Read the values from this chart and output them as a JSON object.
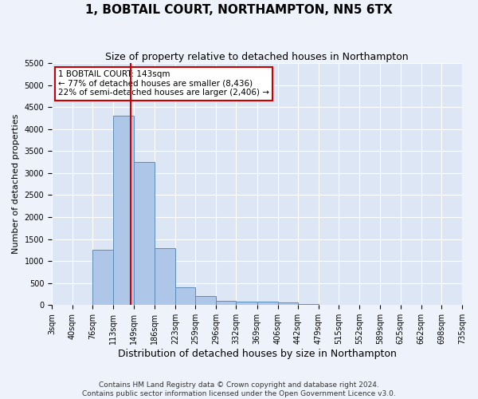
{
  "title": "1, BOBTAIL COURT, NORTHAMPTON, NN5 6TX",
  "subtitle": "Size of property relative to detached houses in Northampton",
  "xlabel": "Distribution of detached houses by size in Northampton",
  "ylabel": "Number of detached properties",
  "footer_line1": "Contains HM Land Registry data © Crown copyright and database right 2024.",
  "footer_line2": "Contains public sector information licensed under the Open Government Licence v3.0.",
  "annotation_line1": "1 BOBTAIL COURT: 143sqm",
  "annotation_line2": "← 77% of detached houses are smaller (8,436)",
  "annotation_line3": "22% of semi-detached houses are larger (2,406) →",
  "bar_edges": [
    3,
    40,
    76,
    113,
    149,
    186,
    223,
    259,
    296,
    332,
    369,
    406,
    442,
    479,
    515,
    552,
    589,
    625,
    662,
    698,
    735
  ],
  "bar_heights": [
    0,
    0,
    1250,
    4300,
    3250,
    1300,
    400,
    200,
    100,
    70,
    70,
    50,
    30,
    0,
    0,
    0,
    0,
    0,
    0,
    0
  ],
  "bar_color": "#aec6e8",
  "bar_edge_color": "#5b8db8",
  "red_line_x": 143,
  "ylim": [
    0,
    5500
  ],
  "yticks": [
    0,
    500,
    1000,
    1500,
    2000,
    2500,
    3000,
    3500,
    4000,
    4500,
    5000,
    5500
  ],
  "bg_color": "#eef2fa",
  "plot_bg_color": "#dde6f5",
  "grid_color": "#ffffff",
  "annotation_box_edge_color": "#cc0000",
  "red_line_color": "#cc0000",
  "title_fontsize": 11,
  "subtitle_fontsize": 9,
  "xlabel_fontsize": 9,
  "ylabel_fontsize": 8,
  "tick_fontsize": 7,
  "annotation_fontsize": 7.5,
  "footer_fontsize": 6.5
}
